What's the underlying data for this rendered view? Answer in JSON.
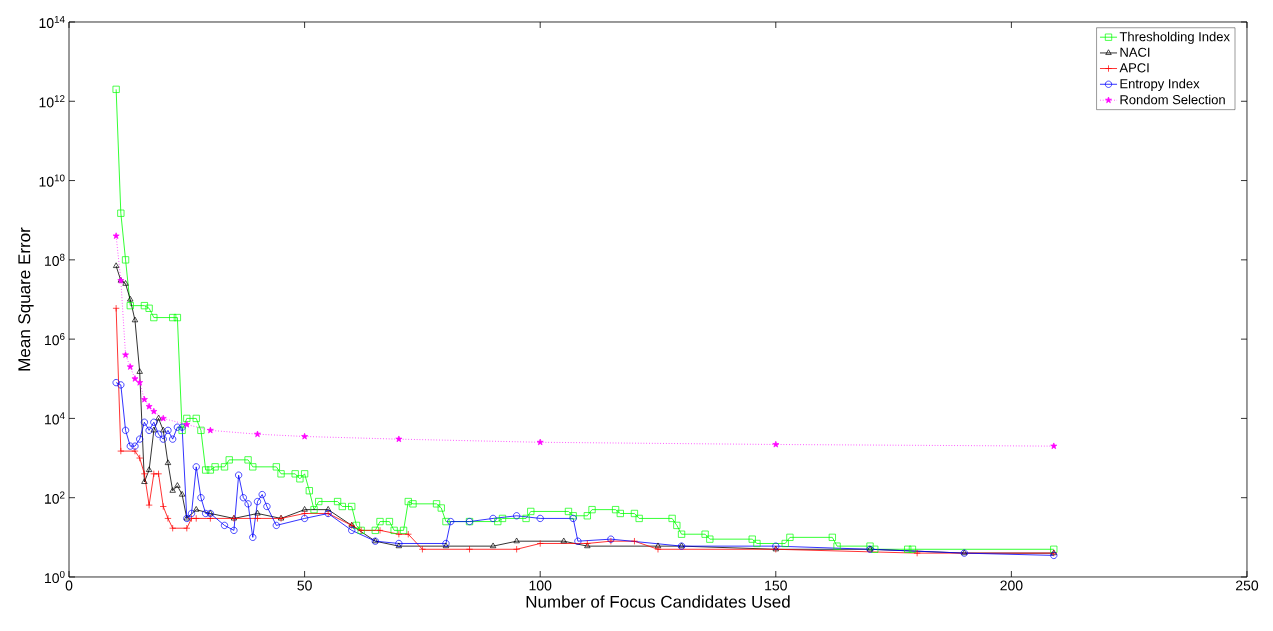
{
  "chart_data": {
    "type": "line",
    "xlabel": "Number of Focus Candidates Used",
    "ylabel": "Mean Square Error",
    "log": "y",
    "legend": "top right",
    "xlim": [
      0,
      250
    ],
    "xticks": [
      0,
      50,
      100,
      150,
      200,
      250
    ],
    "ylim": [
      1,
      100000000000000.0
    ],
    "yticks": [
      {
        "value": 1,
        "label": "10$^{0}$"
      },
      {
        "value": 100,
        "label": "10$^{2}$"
      },
      {
        "value": 10000,
        "label": "10$^{4}$"
      },
      {
        "value": 1000000,
        "label": "10$^{6}$"
      },
      {
        "value": 100000000,
        "label": "10$^{8}$"
      },
      {
        "value": 10000000000,
        "label": "10$^{10}$"
      },
      {
        "value": 1000000000000,
        "label": "10$^{12}$"
      },
      {
        "value": 100000000000000,
        "label": "10$^{14}$"
      }
    ],
    "series": [
      {
        "name": "Thresholding Index",
        "color": "#00ff00",
        "marker": "square",
        "line_style": "solid",
        "x": [
          10,
          11,
          12,
          13,
          16,
          17,
          18,
          22,
          23,
          24,
          25,
          27,
          28,
          29,
          30,
          31,
          33,
          34,
          38,
          39,
          44,
          45,
          48,
          49,
          50,
          51,
          52,
          53,
          57,
          58,
          60,
          61,
          62,
          65,
          66,
          68,
          69,
          71,
          72,
          73,
          78,
          79,
          80,
          85,
          91,
          92,
          97,
          98,
          106,
          107,
          110,
          111,
          116,
          117,
          120,
          121,
          128,
          129,
          130,
          135,
          136,
          145,
          146,
          152,
          153,
          162,
          163,
          170,
          171,
          178,
          179,
          209
        ],
        "values": [
          2000000000000.0,
          1500000000.0,
          100000000.0,
          7000000.0,
          7000000.0,
          6000000.0,
          3500000.0,
          3500000.0,
          3500000.0,
          5000.0,
          10000.0,
          10000.0,
          5000.0,
          500,
          500,
          600,
          600,
          900,
          900,
          600,
          600,
          400,
          400,
          300,
          400,
          150,
          50,
          80,
          80,
          60,
          60,
          20,
          15,
          15,
          25,
          25,
          15,
          15,
          80,
          70,
          70,
          55,
          25,
          25,
          25,
          30,
          30,
          45,
          45,
          35,
          35,
          50,
          50,
          40,
          40,
          30,
          30,
          20,
          12,
          12,
          9,
          9,
          7,
          7,
          10,
          10,
          6,
          6,
          5,
          5,
          5,
          5
        ]
      },
      {
        "name": "NACI",
        "color": "#000000",
        "marker": "triangle",
        "line_style": "solid",
        "x": [
          10,
          11,
          12,
          13,
          14,
          15,
          16,
          17,
          18,
          19,
          20,
          21,
          22,
          23,
          24,
          25,
          27,
          30,
          35,
          40,
          45,
          50,
          55,
          60,
          65,
          70,
          80,
          90,
          95,
          105,
          110,
          125,
          130,
          150,
          170,
          190,
          209
        ],
        "values": [
          70000000.0,
          30000000.0,
          25000000.0,
          10000000.0,
          3000000.0,
          150000.0,
          250,
          500,
          5000,
          10000.0,
          5000,
          750,
          150,
          200,
          120,
          30,
          50,
          40,
          30,
          40,
          30,
          50,
          50,
          20,
          8,
          6,
          6,
          6,
          8,
          8,
          6,
          6,
          6,
          5,
          5,
          4,
          4
        ]
      },
      {
        "name": "APCI",
        "color": "#ff0000",
        "marker": "cross",
        "line_style": "solid",
        "x": [
          10,
          11,
          14,
          15,
          16,
          17,
          18,
          19,
          20,
          21,
          22,
          25,
          26,
          27,
          30,
          35,
          40,
          45,
          50,
          55,
          60,
          62,
          66,
          70,
          72,
          75,
          85,
          95,
          100,
          110,
          115,
          120,
          125,
          150,
          180,
          209
        ],
        "values": [
          6000000.0,
          1500,
          1500,
          1000,
          400,
          65,
          400,
          400,
          60,
          30,
          17,
          17,
          30,
          30,
          30,
          30,
          30,
          30,
          40,
          40,
          20,
          15,
          15,
          12,
          12,
          5,
          5,
          5,
          7,
          7,
          8,
          8,
          5,
          5,
          4,
          4
        ]
      },
      {
        "name": "Entropy Index",
        "color": "#0000ff",
        "marker": "circle",
        "line_style": "solid",
        "x": [
          10,
          11,
          12,
          13,
          14,
          15,
          16,
          17,
          18,
          19,
          20,
          21,
          22,
          23,
          24,
          25,
          26,
          27,
          28,
          29,
          30,
          33,
          35,
          36,
          37,
          38,
          39,
          40,
          41,
          42,
          44,
          50,
          55,
          60,
          65,
          70,
          80,
          81,
          85,
          90,
          95,
          100,
          107,
          108,
          115,
          130,
          150,
          170,
          190,
          209
        ],
        "values": [
          80000.0,
          70000.0,
          5000.0,
          2000.0,
          2000.0,
          3000.0,
          8000.0,
          5000.0,
          8000.0,
          4000.0,
          3000.0,
          5000.0,
          3000.0,
          6000.0,
          6000.0,
          30,
          40,
          600,
          100,
          40,
          40,
          20,
          15,
          370,
          100,
          70,
          10,
          80,
          120,
          60,
          20,
          30,
          40,
          15,
          8,
          7,
          7,
          25,
          25,
          30,
          35,
          30,
          30,
          8,
          9,
          6,
          6,
          5,
          4,
          3.5
        ]
      },
      {
        "name": "Rondom Selection",
        "color": "#ff00ff",
        "marker": "star",
        "line_style": "dotted",
        "x": [
          10,
          11,
          12,
          13,
          14,
          15,
          16,
          17,
          18,
          20,
          25,
          30,
          40,
          50,
          70,
          100,
          150,
          209
        ],
        "values": [
          400000000.0,
          30000000.0,
          400000.0,
          200000.0,
          100000.0,
          80000.0,
          30000.0,
          20000.0,
          15000.0,
          10000.0,
          7000.0,
          5000.0,
          4000.0,
          3500.0,
          3000.0,
          2500.0,
          2200.0,
          2000.0
        ]
      }
    ]
  }
}
